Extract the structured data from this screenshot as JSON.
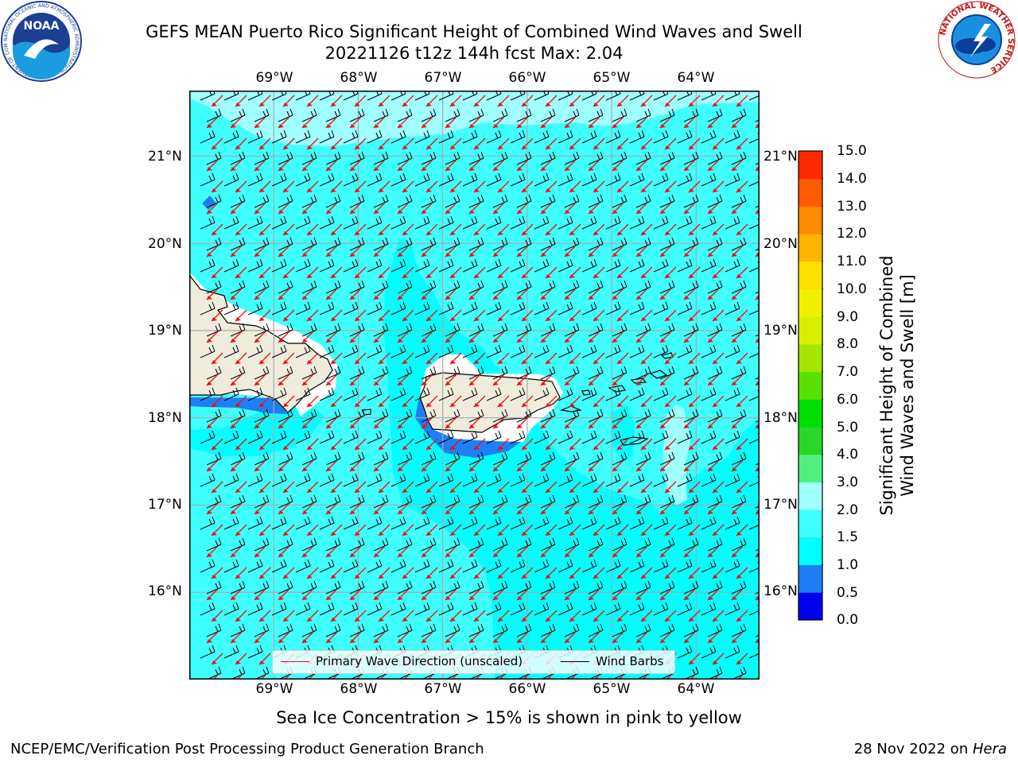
{
  "header": {
    "title_line1": "GEFS MEAN Puerto Rico Significant Height of Combined Wind Waves and Swell",
    "title_line2": "20221126 t12z 144h fcst   Max: 2.04"
  },
  "logos": {
    "left": {
      "name": "noaa-logo",
      "text": "NOAA",
      "ring_text": "NATIONAL OCEANIC AND ATMOSPHERIC ADMINISTRATION · U.S. DEPARTMENT OF COMMERCE"
    },
    "right": {
      "name": "nws-logo",
      "ring_text": "NATIONAL WEATHER SERVICE"
    }
  },
  "map": {
    "lon_labels": [
      "69°W",
      "68°W",
      "67°W",
      "66°W",
      "65°W",
      "64°W"
    ],
    "lat_labels": [
      "21°N",
      "20°N",
      "19°N",
      "18°N",
      "17°N",
      "16°N"
    ],
    "extent": {
      "lon_min": -70.0,
      "lon_max": -63.25,
      "lat_min": 15.0,
      "lat_max": 21.75
    },
    "colors": {
      "sea_1_0_1_5": "#00ffff",
      "sea_1_5_2_0": "#40ffff",
      "sea_2_0_2_5": "#a0ffff",
      "sea_0_5_1_0": "#1e7ff5",
      "land": "#efecdc",
      "wave_arrows": "#ee1111",
      "wind_barbs": "#000000"
    }
  },
  "legend": {
    "wave_label": "Primary Wave Direction (unscaled)",
    "barb_label": "Wind Barbs"
  },
  "colorbar": {
    "ticks": [
      "0.0",
      "0.5",
      "1.0",
      "1.5",
      "2.0",
      "3.0",
      "4.0",
      "5.0",
      "6.0",
      "7.0",
      "8.0",
      "9.0",
      "10.0",
      "11.0",
      "12.0",
      "13.0",
      "14.0",
      "15.0"
    ],
    "colors": [
      "#0000f0",
      "#1e7ff5",
      "#00ffff",
      "#40ffff",
      "#a0ffff",
      "#50f080",
      "#28d828",
      "#00e000",
      "#5ae000",
      "#a5e600",
      "#d6f000",
      "#f0f000",
      "#ffe000",
      "#ffb400",
      "#ff8c00",
      "#ff5a00",
      "#ff2800",
      "#ff0000"
    ],
    "label_line1": "Significant Height of Combined",
    "label_line2": "Wind Waves and Swell [m]"
  },
  "chart_data": {
    "type": "heatmap",
    "variable": "Significant Height of Combined Wind Waves and Swell",
    "units": "m",
    "run": "20221126 t12z",
    "forecast_hour": 144,
    "max_value": 2.04,
    "color_levels": [
      0.0,
      0.5,
      1.0,
      1.5,
      2.0,
      3.0,
      4.0,
      5.0,
      6.0,
      7.0,
      8.0,
      9.0,
      10.0,
      11.0,
      12.0,
      13.0,
      14.0,
      15.0
    ],
    "regions": [
      {
        "area": "northern edge of domain",
        "range": "2.0-3.0"
      },
      {
        "area": "open Caribbean and Atlantic",
        "range": "1.5-2.0"
      },
      {
        "area": "south-central Caribbean",
        "range": "1.0-1.5"
      },
      {
        "area": "lee of Puerto Rico and Hispaniola south coasts",
        "range": "0.5-1.0"
      }
    ],
    "wave_direction": "from the northeast",
    "wind_barbs": "from the east-northeast"
  },
  "notes": {
    "sea_ice": "Sea Ice Concentration > 15% is shown in pink to yellow",
    "credit": "NCEP/EMC/Verification Post Processing Product Generation Branch",
    "date_prefix": "28 Nov 2022 on ",
    "machine": "Hera"
  }
}
